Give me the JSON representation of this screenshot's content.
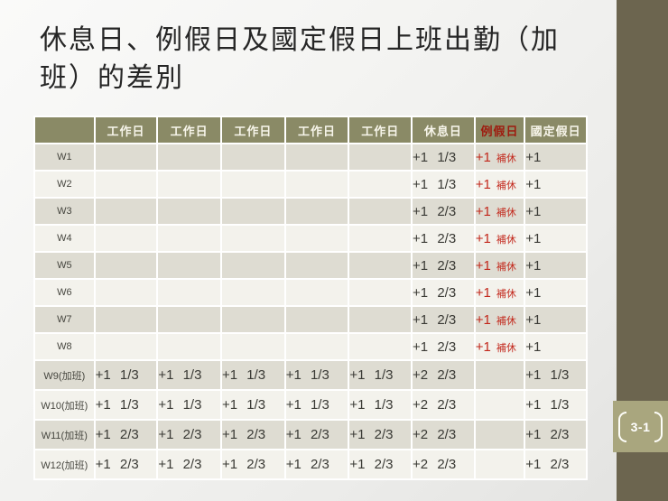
{
  "slide": {
    "title_lines": [
      "休息日、例假日及國定假日上班出勤（加",
      "班）的差別"
    ],
    "title_full": "休息日、例假日及國定假日上班出勤（加班）的差別",
    "page_number": "3-1"
  },
  "colors": {
    "table_header_bg": "#8a8a66",
    "table_header_text": "#f7f5ea",
    "table_header_red_text": "#9e1a0e",
    "band_dark": "#dedcd2",
    "band_light": "#f3f2ec",
    "cell_text": "#3a3a35",
    "accent_red": "#c2271b",
    "sidebar_bar": "#6c654f",
    "badge_bg": "#a9a67e",
    "badge_text": "#ffffff",
    "title_text": "#262626"
  },
  "table": {
    "header": [
      "",
      "工作日",
      "工作日",
      "工作日",
      "工作日",
      "工作日",
      "休息日",
      "例假日",
      "國定假日"
    ],
    "red_header_index": 7,
    "rows": [
      {
        "label": "W1",
        "cells": [
          "",
          "",
          "",
          "",
          "",
          "+1 1/3",
          {
            "main": "+1",
            "note": "補休"
          },
          "+1"
        ]
      },
      {
        "label": "W2",
        "cells": [
          "",
          "",
          "",
          "",
          "",
          "+1 1/3",
          {
            "main": "+1",
            "note": "補休"
          },
          "+1"
        ]
      },
      {
        "label": "W3",
        "cells": [
          "",
          "",
          "",
          "",
          "",
          "+1 2/3",
          {
            "main": "+1",
            "note": "補休"
          },
          "+1"
        ]
      },
      {
        "label": "W4",
        "cells": [
          "",
          "",
          "",
          "",
          "",
          "+1 2/3",
          {
            "main": "+1",
            "note": "補休"
          },
          "+1"
        ]
      },
      {
        "label": "W5",
        "cells": [
          "",
          "",
          "",
          "",
          "",
          "+1 2/3",
          {
            "main": "+1",
            "note": "補休"
          },
          "+1"
        ]
      },
      {
        "label": "W6",
        "cells": [
          "",
          "",
          "",
          "",
          "",
          "+1 2/3",
          {
            "main": "+1",
            "note": "補休"
          },
          "+1"
        ]
      },
      {
        "label": "W7",
        "cells": [
          "",
          "",
          "",
          "",
          "",
          "+1 2/3",
          {
            "main": "+1",
            "note": "補休"
          },
          "+1"
        ]
      },
      {
        "label": "W8",
        "cells": [
          "",
          "",
          "",
          "",
          "",
          "+1 2/3",
          {
            "main": "+1",
            "note": "補休"
          },
          "+1"
        ]
      },
      {
        "label": "W9(加班)",
        "cells": [
          "+1 1/3",
          "+1 1/3",
          "+1 1/3",
          "+1 1/3",
          "+1 1/3",
          "+2 2/3",
          "",
          "+1 1/3"
        ]
      },
      {
        "label": "W10(加班)",
        "cells": [
          "+1 1/3",
          "+1 1/3",
          "+1 1/3",
          "+1 1/3",
          "+1 1/3",
          "+2 2/3",
          "",
          "+1 1/3"
        ]
      },
      {
        "label": "W11(加班)",
        "cells": [
          "+1 2/3",
          "+1 2/3",
          "+1 2/3",
          "+1 2/3",
          "+1 2/3",
          "+2 2/3",
          "",
          "+1 2/3"
        ]
      },
      {
        "label": "W12(加班)",
        "cells": [
          "+1 2/3",
          "+1 2/3",
          "+1 2/3",
          "+1 2/3",
          "+1 2/3",
          "+2 2/3",
          "",
          "+1 2/3"
        ]
      }
    ]
  }
}
